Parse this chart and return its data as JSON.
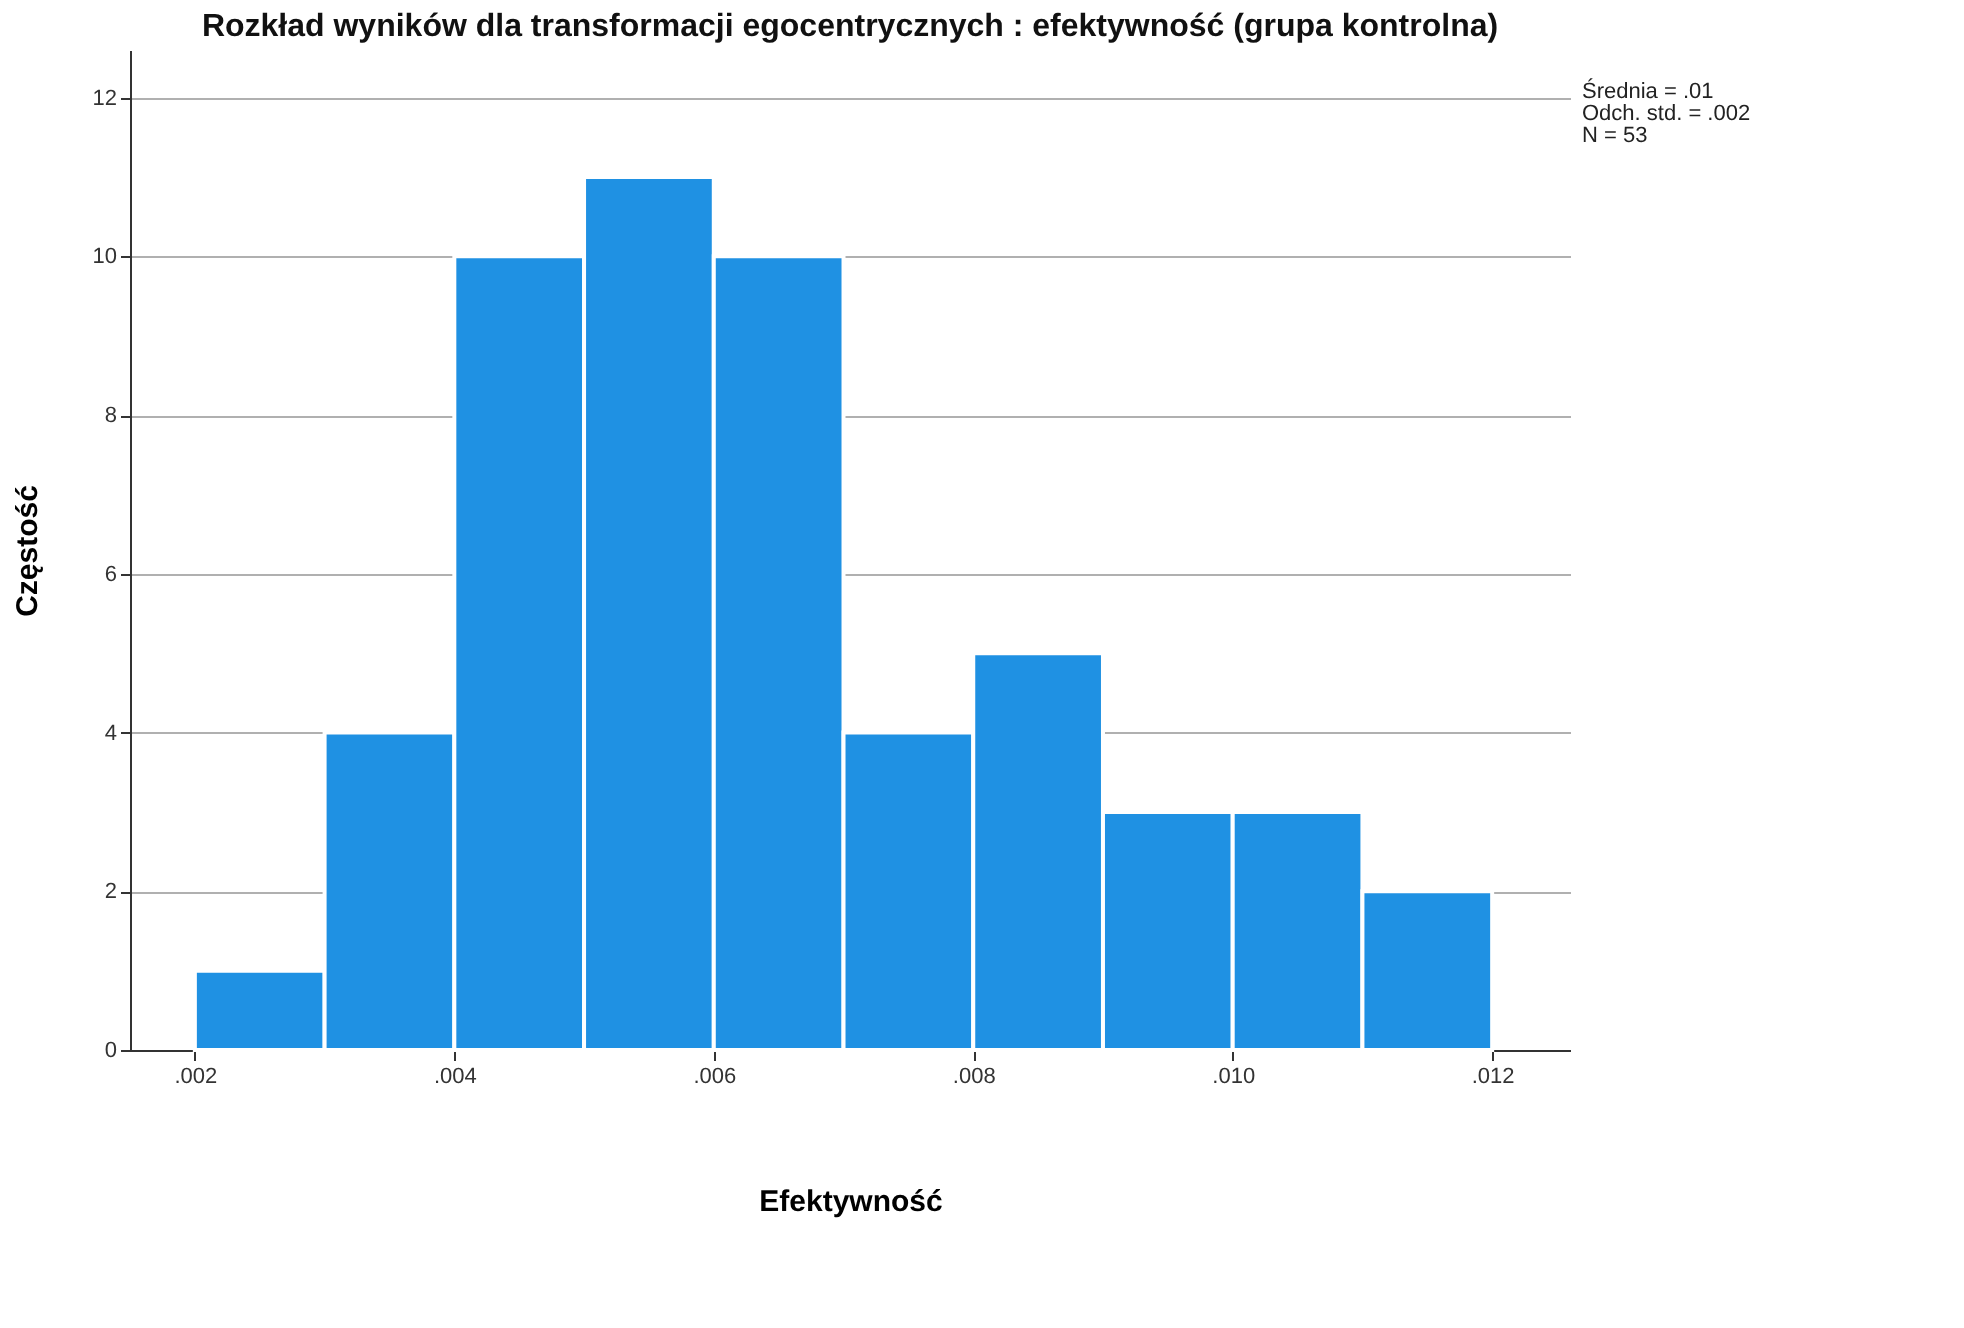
{
  "chart_data": {
    "type": "histogram",
    "title": "Rozkład wyników dla transformacji egocentrycznych : efektywność (grupa kontrolna)",
    "xlabel": "Efektywność",
    "ylabel": "Częstość",
    "bins": [
      0.002,
      0.003,
      0.004,
      0.005,
      0.006,
      0.007,
      0.008,
      0.009,
      0.01,
      0.011,
      0.012
    ],
    "values": [
      1,
      4,
      10,
      11,
      10,
      4,
      5,
      3,
      3,
      2
    ],
    "color": "#1f91e3",
    "xlim": [
      0.0015,
      0.0126
    ],
    "ylim": [
      0,
      12.6
    ],
    "xticks": [
      {
        "value": 0.002,
        "label": ".002"
      },
      {
        "value": 0.004,
        "label": ".004"
      },
      {
        "value": 0.006,
        "label": ".006"
      },
      {
        "value": 0.008,
        "label": ".008"
      },
      {
        "value": 0.01,
        "label": ".010"
      },
      {
        "value": 0.012,
        "label": ".012"
      }
    ],
    "yticks": [
      0,
      2,
      4,
      6,
      8,
      10,
      12
    ],
    "grid": "y",
    "annotations": [
      "Średnia = .01",
      "Odch. std. = .002",
      "N = 53"
    ]
  }
}
